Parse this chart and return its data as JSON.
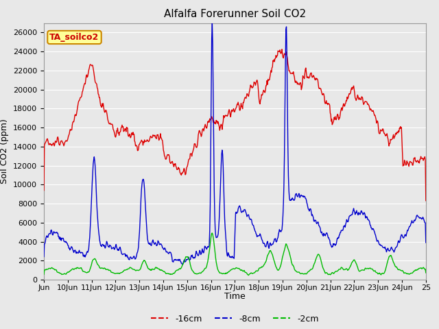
{
  "title": "Alfalfa Forerunner Soil CO2",
  "xlabel": "Time",
  "ylabel": "Soil CO2 (ppm)",
  "ylim": [
    0,
    27000
  ],
  "yticks": [
    0,
    2000,
    4000,
    6000,
    8000,
    10000,
    12000,
    14000,
    16000,
    18000,
    20000,
    22000,
    24000,
    26000
  ],
  "background_color": "#e8e8e8",
  "plot_bg_color": "#e8e8e8",
  "grid_color": "#ffffff",
  "legend_label": "TA_soilco2",
  "legend_box_facecolor": "#ffff99",
  "legend_box_edgecolor": "#cc8800",
  "series_labels": [
    "-16cm",
    "-8cm",
    "-2cm"
  ],
  "series_colors": [
    "#dd0000",
    "#0000cc",
    "#00bb00"
  ],
  "line_width": 1.0,
  "title_fontsize": 11,
  "axis_label_fontsize": 9,
  "tick_fontsize": 8,
  "legend_fontsize": 9,
  "annotation_fontsize": 9
}
